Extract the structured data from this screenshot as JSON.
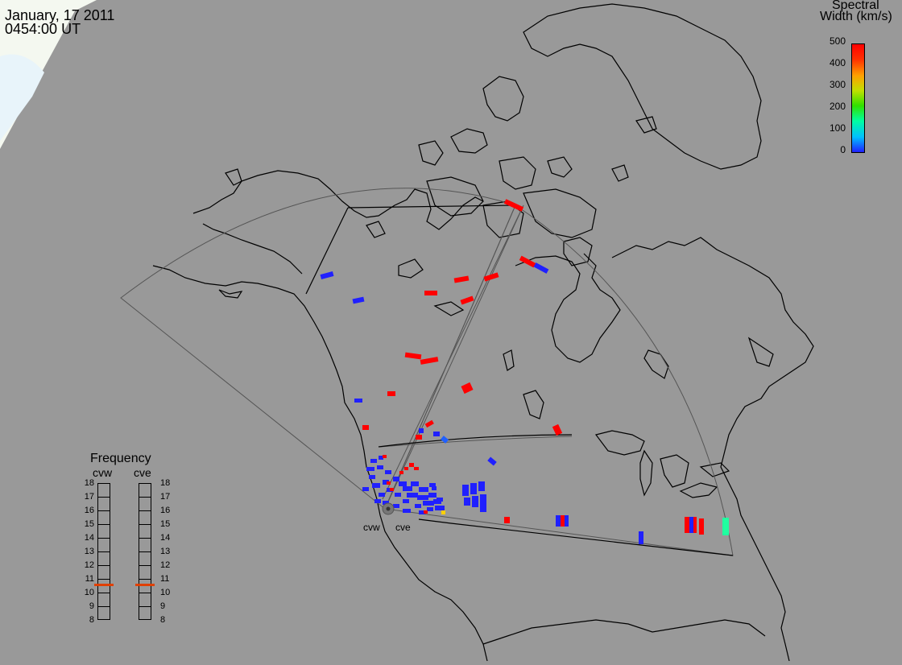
{
  "header": {
    "date": "January, 17 2011",
    "time": "0454:00 UT"
  },
  "colorbar": {
    "title_line1": "Spectral",
    "title_line2": "Width (km/s)",
    "ticks": [
      "500",
      "400",
      "300",
      "200",
      "100",
      "0"
    ],
    "range": [
      0,
      500
    ],
    "colors": [
      "#2020ff",
      "#00c0ff",
      "#00ffa0",
      "#30e000",
      "#c0e000",
      "#ffa000",
      "#ff3000",
      "#ff0000"
    ]
  },
  "frequency_panel": {
    "title": "Frequency",
    "radar_left": "cvw",
    "radar_right": "cve",
    "scale": [
      "18",
      "17",
      "16",
      "15",
      "14",
      "13",
      "12",
      "11",
      "10",
      "9",
      "8"
    ],
    "cvw_value_mhz": 10.6,
    "cve_value_mhz": 10.6,
    "marker_color": "#e04000"
  },
  "radar_sites": {
    "west_label": "cvw",
    "east_label": "cve"
  },
  "map": {
    "background_color": "#999999",
    "coastline_color": "#000000",
    "fov_color": "#555555"
  }
}
